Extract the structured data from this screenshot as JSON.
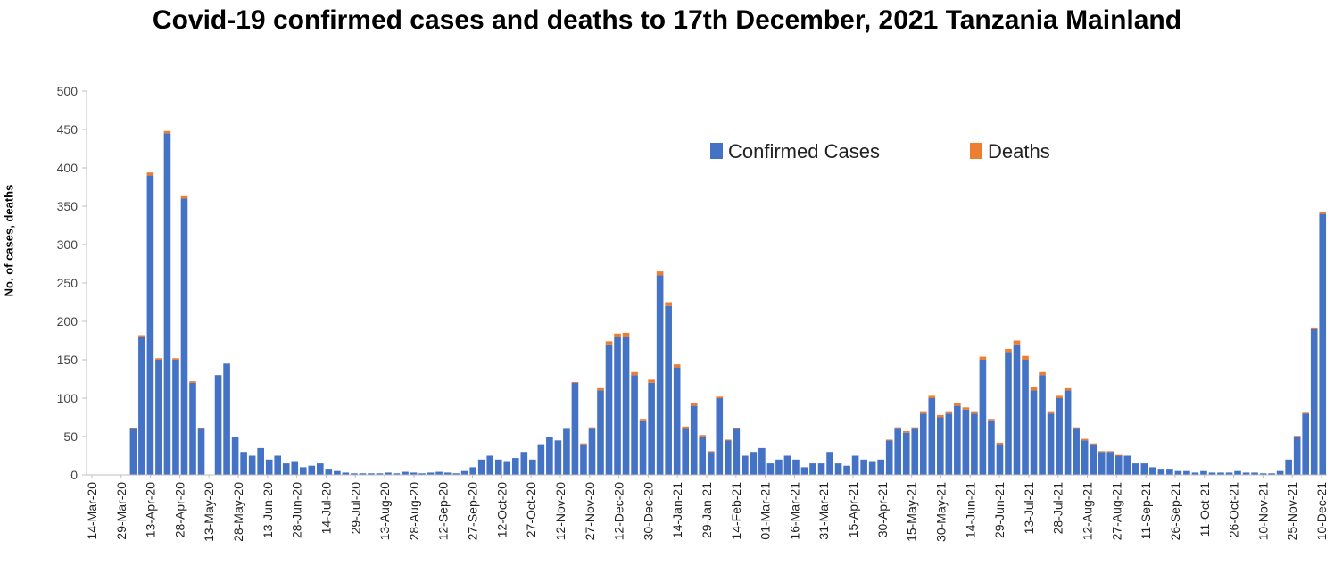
{
  "title": "Covid-19 confirmed cases and deaths to 17th December, 2021 Tanzania Mainland",
  "chart_data": {
    "type": "bar",
    "title": "Covid-19 confirmed cases and deaths to 17th December, 2021 Tanzania Mainland",
    "xlabel": "",
    "ylabel": "No. of cases, deaths",
    "ylim": [
      0,
      500
    ],
    "yticks": [
      0,
      50,
      100,
      150,
      200,
      250,
      300,
      350,
      400,
      450,
      500
    ],
    "stacked": true,
    "grid": false,
    "legend_position": "top-center",
    "x_tick_labels": [
      "14-Mar-20",
      "29-Mar-20",
      "13-Apr-20",
      "28-Apr-20",
      "13-May-20",
      "28-May-20",
      "13-Jun-20",
      "28-Jun-20",
      "14-Jul-20",
      "29-Jul-20",
      "13-Aug-20",
      "28-Aug-20",
      "12-Sep-20",
      "27-Sep-20",
      "12-Oct-20",
      "27-Oct-20",
      "12-Nov-20",
      "27-Nov-20",
      "12-Dec-20",
      "30-Dec-20",
      "14-Jan-21",
      "29-Jan-21",
      "14-Feb-21",
      "01-Mar-21",
      "16-Mar-21",
      "31-Mar-21",
      "15-Apr-21",
      "30-Apr-21",
      "15-May-21",
      "30-May-21",
      "14-Jun-21",
      "29-Jun-21",
      "13-Jul-21",
      "28-Jul-21",
      "12-Aug-21",
      "27-Aug-21",
      "11-Sep-21",
      "26-Sep-21",
      "11-Oct-21",
      "26-Oct-21",
      "10-Nov-21",
      "25-Nov-21",
      "10-Dec-21"
    ],
    "x_start": "2020-03-14",
    "x_step_days": 7,
    "series": [
      {
        "name": "Confirmed Cases",
        "color": "#4472c4",
        "values": [
          0,
          0,
          0,
          0,
          0,
          60,
          180,
          390,
          150,
          445,
          150,
          360,
          120,
          60,
          0,
          130,
          145,
          50,
          30,
          25,
          35,
          20,
          25,
          15,
          18,
          10,
          12,
          15,
          8,
          5,
          3,
          2,
          2,
          2,
          2,
          3,
          2,
          4,
          3,
          2,
          3,
          4,
          3,
          2,
          5,
          10,
          20,
          25,
          20,
          18,
          22,
          30,
          20,
          40,
          50,
          45,
          60,
          120,
          40,
          60,
          110,
          170,
          180,
          180,
          130,
          70,
          120,
          260,
          220,
          140,
          60,
          90,
          50,
          30,
          100,
          45,
          60,
          25,
          30,
          35,
          15,
          20,
          25,
          20,
          10,
          15,
          15,
          30,
          15,
          12,
          25,
          20,
          18,
          20,
          45,
          60,
          55,
          60,
          80,
          100,
          75,
          80,
          90,
          85,
          80,
          150,
          70,
          40,
          160,
          170,
          150,
          110,
          130,
          80,
          100,
          110,
          60,
          45,
          40,
          30,
          30,
          25,
          25,
          15,
          15,
          10,
          8,
          8,
          5,
          5,
          3,
          5,
          3,
          3,
          3,
          5,
          3,
          3,
          2,
          2,
          5,
          20,
          50,
          80,
          190,
          340
        ],
        "values_note_removed": true
      },
      {
        "name": "Deaths",
        "color": "#ed7d31",
        "values": [
          0,
          0,
          0,
          0,
          0,
          1,
          2,
          4,
          2,
          3,
          2,
          3,
          2,
          1,
          0,
          0,
          0,
          0,
          0,
          0,
          0,
          0,
          0,
          0,
          0,
          0,
          0,
          0,
          0,
          0,
          0,
          0,
          0,
          0,
          0,
          0,
          0,
          0,
          0,
          0,
          0,
          0,
          0,
          0,
          0,
          0,
          0,
          0,
          0,
          0,
          0,
          0,
          0,
          0,
          0,
          0,
          0,
          1,
          1,
          2,
          3,
          4,
          4,
          5,
          4,
          3,
          4,
          5,
          5,
          4,
          3,
          3,
          2,
          1,
          2,
          1,
          1,
          0,
          0,
          0,
          0,
          0,
          0,
          0,
          0,
          0,
          0,
          0,
          0,
          0,
          0,
          0,
          0,
          0,
          1,
          2,
          2,
          2,
          3,
          3,
          3,
          3,
          3,
          3,
          3,
          4,
          3,
          2,
          4,
          5,
          5,
          4,
          4,
          3,
          3,
          3,
          2,
          2,
          1,
          1,
          1,
          1,
          0,
          0,
          0,
          0,
          0,
          0,
          0,
          0,
          0,
          0,
          0,
          0,
          0,
          0,
          0,
          0,
          0,
          0,
          0,
          0,
          1,
          1,
          2,
          3
        ]
      }
    ]
  }
}
